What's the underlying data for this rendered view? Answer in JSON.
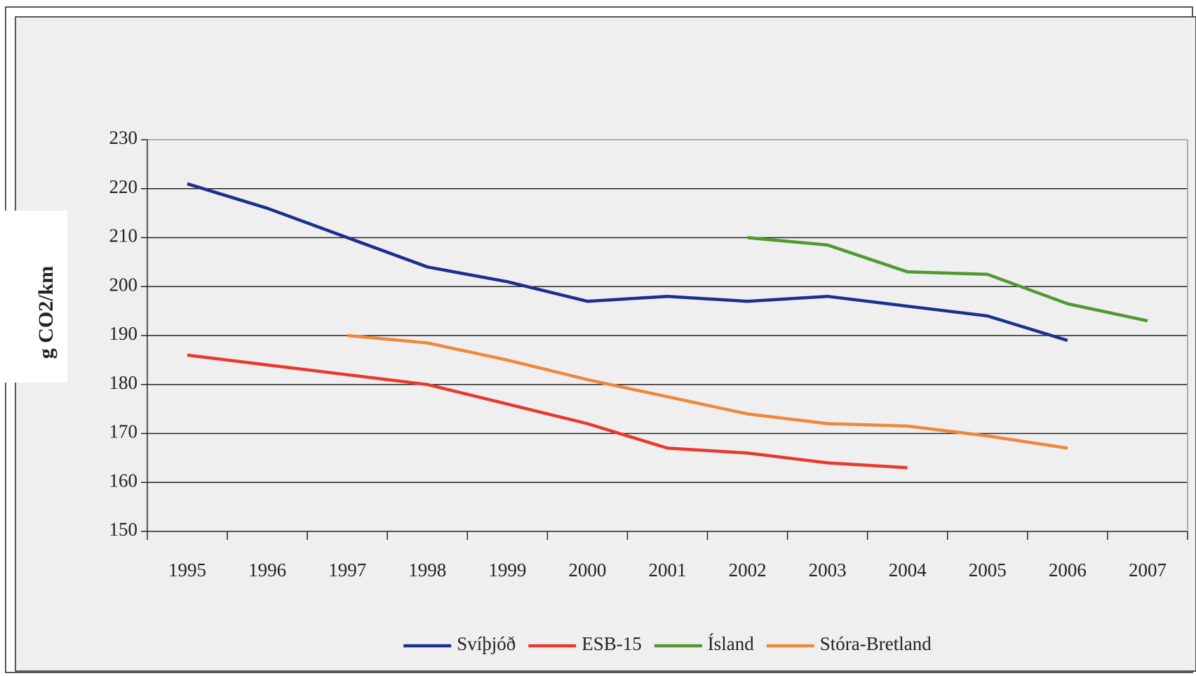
{
  "chart_data": {
    "type": "line",
    "y_label": "g CO2/km",
    "categories": [
      "1995",
      "1996",
      "1997",
      "1998",
      "1999",
      "2000",
      "2001",
      "2002",
      "2003",
      "2004",
      "2005",
      "2006",
      "2007"
    ],
    "series": [
      {
        "name": "Svíþjóð",
        "color": "#1c2f8f",
        "values": [
          221,
          216,
          210,
          204,
          201,
          197,
          198,
          197,
          198,
          196,
          194,
          189,
          null
        ]
      },
      {
        "name": "ESB-15",
        "color": "#e8392f",
        "values": [
          186,
          184,
          182,
          180,
          176,
          172,
          167,
          166,
          164,
          163,
          null,
          null,
          null
        ]
      },
      {
        "name": "Ísland",
        "color": "#4e9a2f",
        "values": [
          null,
          null,
          null,
          null,
          null,
          null,
          null,
          210,
          208.5,
          203,
          202.5,
          196.5,
          193
        ]
      },
      {
        "name": "Stóra-Bretland",
        "color": "#f0883c",
        "values": [
          null,
          null,
          190,
          188.5,
          185,
          181,
          177.5,
          174,
          172,
          171.5,
          169.5,
          167,
          null
        ]
      }
    ],
    "ylim": [
      150,
      230
    ],
    "yticks": [
      150,
      160,
      170,
      180,
      190,
      200,
      210,
      220,
      230
    ],
    "grid": true,
    "legend": "bottom"
  }
}
